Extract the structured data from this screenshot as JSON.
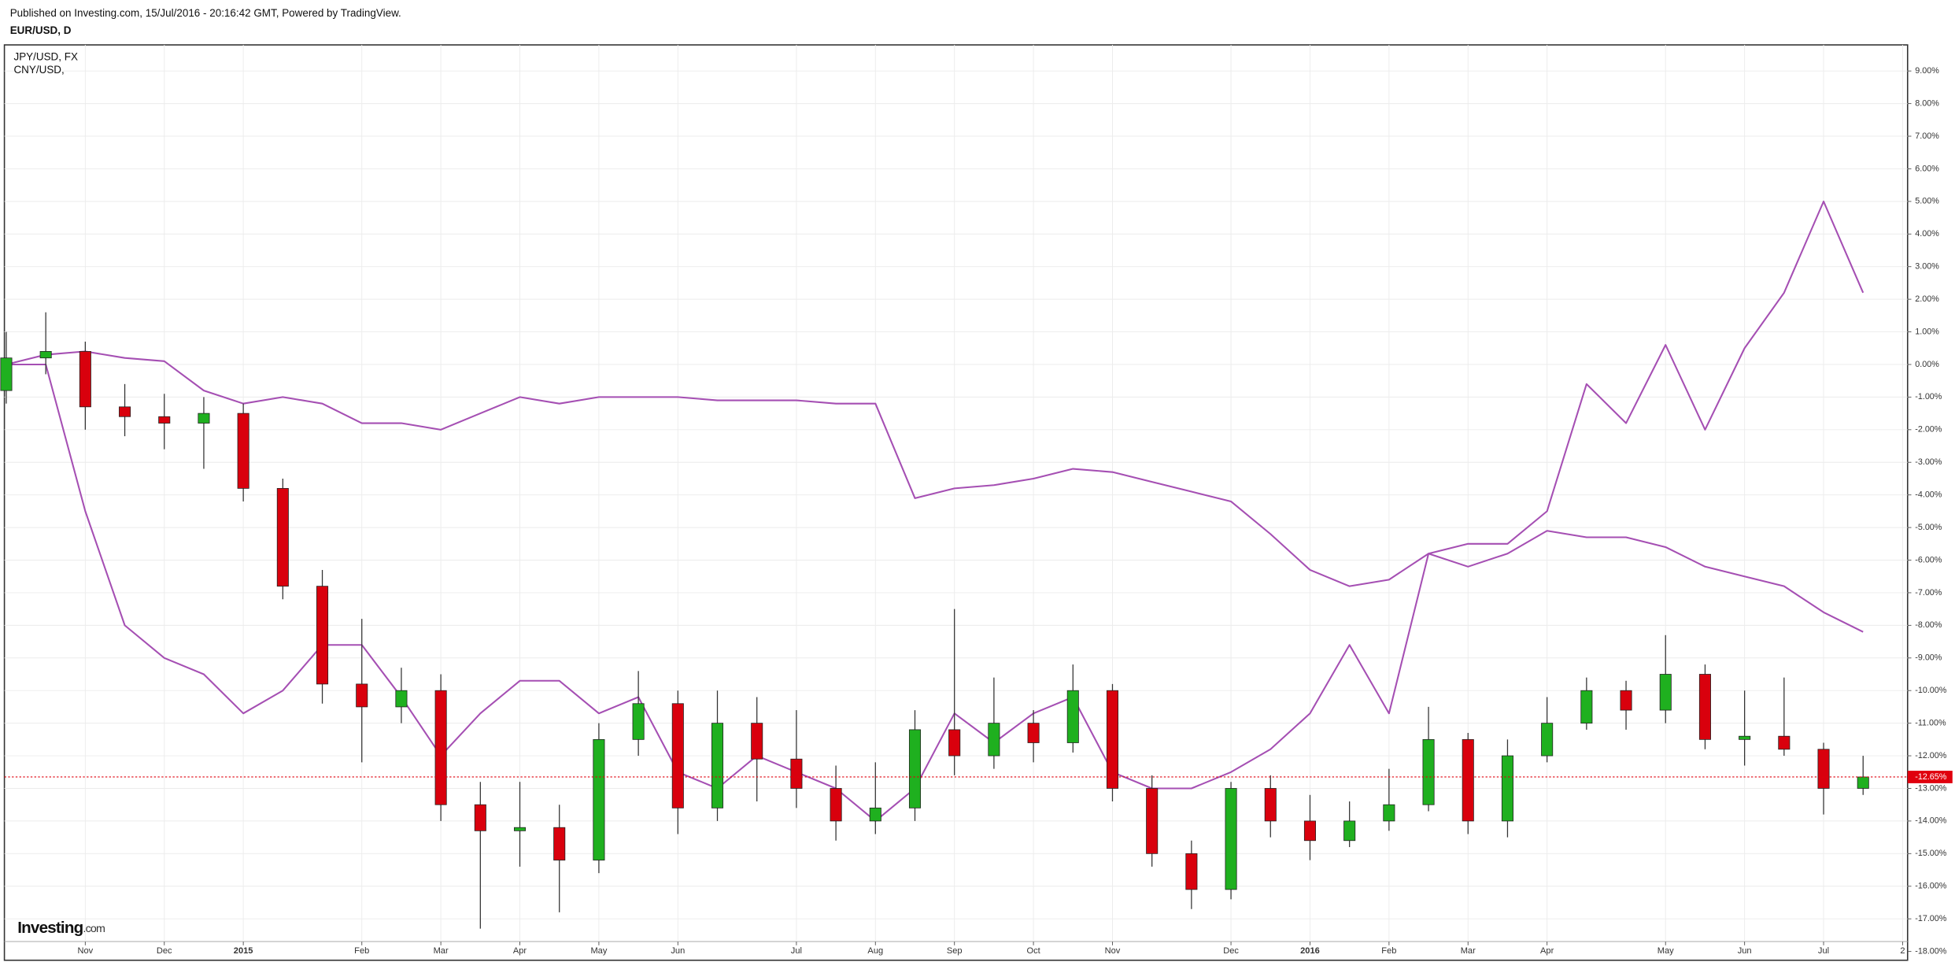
{
  "chart_data": {
    "type": "candlestick",
    "subtitle": "Published on Investing.com, 15/Jul/2016 - 20:16:42 GMT, Powered by TradingView.",
    "title": "EUR/USD, D",
    "logo": "Investing",
    "logo_suffix": ".com",
    "categories": [
      null,
      null,
      "Nov",
      null,
      "Dec",
      null,
      "2015",
      null,
      null,
      "Feb",
      null,
      "Mar",
      null,
      "Apr",
      null,
      "May",
      null,
      "Jun",
      null,
      null,
      "Jul",
      null,
      "Aug",
      null,
      "Sep",
      null,
      "Oct",
      null,
      "Nov",
      null,
      null,
      "Dec",
      null,
      "2016",
      null,
      "Feb",
      null,
      "Mar",
      null,
      "Apr",
      null,
      null,
      "May",
      null,
      "Jun",
      null,
      "Jul",
      null,
      "2"
    ],
    "open": [
      -0.8,
      0.2,
      0.4,
      -1.3,
      -1.6,
      -1.8,
      -1.5,
      -3.8,
      -6.8,
      -9.8,
      -10.5,
      -10.0,
      -13.5,
      -14.3,
      -14.2,
      -15.2,
      -11.5,
      -10.4,
      -13.6,
      -11.0,
      -12.1,
      -13.0,
      -14.0,
      -13.6,
      -11.2,
      -12.0,
      -11.0,
      -11.6,
      -10.0,
      -13.0,
      -15.0,
      -16.1,
      -13.0,
      -14.0,
      -14.6,
      -14.0,
      -13.5,
      -11.5,
      -14.0,
      -12.0,
      -11.0,
      -10.0,
      -10.6,
      -9.5,
      -11.5,
      -11.4,
      -11.8,
      -13.0,
      null
    ],
    "high": [
      1.0,
      1.6,
      0.7,
      -0.6,
      -0.9,
      -1.0,
      -1.2,
      -3.5,
      -6.3,
      -7.8,
      -9.3,
      -9.5,
      -12.8,
      -12.8,
      -13.5,
      -11.0,
      -9.4,
      -10.0,
      -10.0,
      -10.2,
      -10.6,
      -12.3,
      -12.2,
      -10.6,
      -7.5,
      -9.6,
      -10.6,
      -9.2,
      -9.8,
      -12.6,
      -14.6,
      -12.8,
      -12.6,
      -13.2,
      -13.4,
      -12.4,
      -10.5,
      -11.3,
      -11.5,
      -10.2,
      -9.6,
      -9.7,
      -8.3,
      -9.2,
      -10.0,
      -9.6,
      -11.6,
      -12.0,
      null
    ],
    "low": [
      -1.2,
      -0.3,
      -2.0,
      -2.2,
      -2.6,
      -3.2,
      -4.2,
      -7.2,
      -10.4,
      -12.2,
      -11.0,
      -14.0,
      -17.3,
      -15.4,
      -16.8,
      -15.6,
      -12.0,
      -14.4,
      -14.0,
      -13.4,
      -13.6,
      -14.6,
      -14.4,
      -14.0,
      -12.6,
      -12.4,
      -12.2,
      -11.9,
      -13.4,
      -15.4,
      -16.7,
      -16.4,
      -14.5,
      -15.2,
      -14.8,
      -14.3,
      -13.7,
      -14.4,
      -14.5,
      -12.2,
      -11.2,
      -11.2,
      -11.0,
      -11.8,
      -12.3,
      -12.0,
      -13.8,
      -13.2,
      null
    ],
    "close": [
      0.2,
      0.4,
      -1.3,
      -1.6,
      -1.8,
      -1.5,
      -3.8,
      -6.8,
      -9.8,
      -10.5,
      -10.0,
      -13.5,
      -14.3,
      -14.2,
      -15.2,
      -11.5,
      -10.4,
      -13.6,
      -11.0,
      -12.1,
      -13.0,
      -14.0,
      -13.6,
      -11.2,
      -12.0,
      -11.0,
      -11.6,
      -10.0,
      -13.0,
      -15.0,
      -16.1,
      -13.0,
      -14.0,
      -14.6,
      -14.0,
      -13.5,
      -11.5,
      -14.0,
      -12.0,
      -11.0,
      -10.0,
      -10.6,
      -9.5,
      -11.5,
      -11.4,
      -11.8,
      -13.0,
      -12.65,
      null
    ],
    "up_color": "#1fb01f",
    "down_color": "#d9000d",
    "series": [
      {
        "name": "JPY/USD, FX",
        "color": "#a54fb3",
        "values": [
          0,
          0,
          -4.5,
          -8,
          -9,
          -9.5,
          -10.7,
          -10,
          -8.6,
          -8.6,
          -10.2,
          -12,
          -10.7,
          -9.7,
          -9.7,
          -10.7,
          -10.2,
          -12.5,
          -13,
          -12,
          -12.5,
          -13,
          -14,
          -13,
          -10.7,
          -11.6,
          -10.7,
          -10.2,
          -12.5,
          -13,
          -13,
          -12.5,
          -11.8,
          -10.7,
          -8.6,
          -10.7,
          -5.8,
          -5.5,
          -5.5,
          -4.5,
          -0.6,
          -1.8,
          0.6,
          -2,
          0.5,
          2.2,
          5,
          2.2,
          null
        ]
      },
      {
        "name": "CNY/USD,",
        "color": "#a54fb3",
        "values": [
          0,
          0.3,
          0.4,
          0.2,
          0.1,
          -0.8,
          -1.2,
          -1.0,
          -1.2,
          -1.8,
          -1.8,
          -2.0,
          -1.5,
          -1.0,
          -1.2,
          -1.0,
          -1.0,
          -1.0,
          -1.1,
          -1.1,
          -1.1,
          -1.2,
          -1.2,
          -4.1,
          -3.8,
          -3.7,
          -3.5,
          -3.2,
          -3.3,
          -3.6,
          -3.9,
          -4.2,
          -5.2,
          -6.3,
          -6.8,
          -6.6,
          -5.8,
          -6.2,
          -5.8,
          -5.1,
          -5.3,
          -5.3,
          -5.6,
          -6.2,
          -6.5,
          -6.8,
          -7.6,
          -8.2,
          null
        ]
      }
    ],
    "last_price": {
      "value": -12.65,
      "label": "-12.65%"
    },
    "last_price_color": "#e0000d",
    "ylim": [
      -18.27,
      9.8
    ],
    "yticks": [
      {
        "value": 9,
        "label": "9.00%"
      },
      {
        "value": 8,
        "label": "8.00%"
      },
      {
        "value": 7,
        "label": "7.00%"
      },
      {
        "value": 6,
        "label": "6.00%"
      },
      {
        "value": 5,
        "label": "5.00%"
      },
      {
        "value": 4,
        "label": "4.00%"
      },
      {
        "value": 3,
        "label": "3.00%"
      },
      {
        "value": 2,
        "label": "2.00%"
      },
      {
        "value": 1,
        "label": "1.00%"
      },
      {
        "value": 0,
        "label": "0.00%"
      },
      {
        "value": -1,
        "label": "-1.00%"
      },
      {
        "value": -2,
        "label": "-2.00%"
      },
      {
        "value": -3,
        "label": "-3.00%"
      },
      {
        "value": -4,
        "label": "-4.00%"
      },
      {
        "value": -5,
        "label": "-5.00%"
      },
      {
        "value": -6,
        "label": "-6.00%"
      },
      {
        "value": -7,
        "label": "-7.00%"
      },
      {
        "value": -8,
        "label": "-8.00%"
      },
      {
        "value": -9,
        "label": "-9.00%"
      },
      {
        "value": -10,
        "label": "-10.00%"
      },
      {
        "value": -11,
        "label": "-11.00%"
      },
      {
        "value": -12,
        "label": "-12.00%"
      },
      {
        "value": -13,
        "label": "-13.00%"
      },
      {
        "value": -14,
        "label": "-14.00%"
      },
      {
        "value": -15,
        "label": "-15.00%"
      },
      {
        "value": -16,
        "label": "-16.00%"
      },
      {
        "value": -17,
        "label": "-17.00%"
      },
      {
        "value": -18,
        "label": "-18.00%"
      }
    ],
    "grid": true
  }
}
